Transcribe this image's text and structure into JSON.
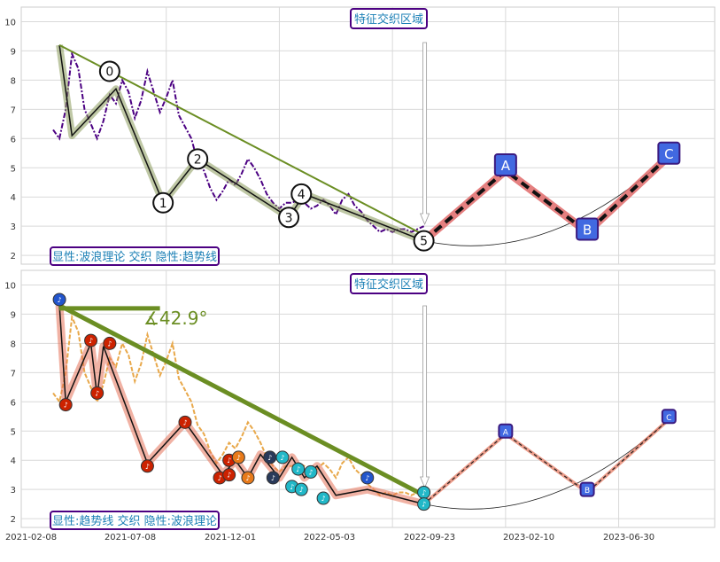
{
  "chart_data": [
    {
      "type": "line",
      "panel": "top",
      "ylim": [
        1.7,
        10.5
      ],
      "yticks": [
        2,
        3,
        4,
        5,
        6,
        7,
        8,
        9,
        10
      ],
      "grid": true,
      "annotation_top": "特征交织区域",
      "annotation_bottom_left": "显性:波浪理论 交织 隐性:趋势线",
      "price_series": {
        "color": "#4b0082",
        "values": [
          [
            0,
            6.3
          ],
          [
            2,
            6.0
          ],
          [
            4,
            7.0
          ],
          [
            6,
            8.9
          ],
          [
            8,
            8.4
          ],
          [
            10,
            7.0
          ],
          [
            12,
            6.5
          ],
          [
            14,
            6.0
          ],
          [
            16,
            6.6
          ],
          [
            18,
            7.5
          ],
          [
            20,
            7.2
          ],
          [
            22,
            8.0
          ],
          [
            24,
            7.6
          ],
          [
            26,
            6.7
          ],
          [
            28,
            7.3
          ],
          [
            30,
            8.3
          ],
          [
            32,
            7.6
          ],
          [
            34,
            6.9
          ],
          [
            36,
            7.4
          ],
          [
            38,
            8.0
          ],
          [
            40,
            6.8
          ],
          [
            42,
            6.4
          ],
          [
            44,
            6.0
          ],
          [
            46,
            5.2
          ],
          [
            48,
            4.9
          ],
          [
            50,
            4.3
          ],
          [
            52,
            3.9
          ],
          [
            54,
            4.2
          ],
          [
            56,
            4.6
          ],
          [
            58,
            4.4
          ],
          [
            60,
            4.8
          ],
          [
            62,
            5.3
          ],
          [
            64,
            5.0
          ],
          [
            66,
            4.6
          ],
          [
            68,
            4.1
          ],
          [
            70,
            3.8
          ],
          [
            72,
            3.6
          ],
          [
            74,
            3.8
          ],
          [
            76,
            3.8
          ],
          [
            78,
            3.9
          ],
          [
            80,
            3.8
          ],
          [
            82,
            3.6
          ],
          [
            84,
            3.7
          ],
          [
            86,
            3.9
          ],
          [
            88,
            3.7
          ],
          [
            90,
            3.4
          ],
          [
            92,
            3.9
          ],
          [
            94,
            4.1
          ],
          [
            96,
            3.7
          ],
          [
            98,
            3.5
          ],
          [
            100,
            3.2
          ],
          [
            102,
            3.0
          ],
          [
            104,
            2.8
          ],
          [
            106,
            2.9
          ],
          [
            108,
            2.8
          ],
          [
            110,
            2.9
          ],
          [
            112,
            2.9
          ],
          [
            114,
            2.8
          ],
          [
            116,
            2.9
          ],
          [
            118,
            3.0
          ]
        ]
      },
      "wave_points": [
        [
          2,
          9.2
        ],
        [
          6,
          6.1
        ],
        [
          20,
          7.7
        ],
        [
          35,
          3.8
        ],
        [
          46,
          5.3
        ],
        [
          75,
          3.3
        ],
        [
          80,
          4.1
        ],
        [
          118,
          2.5
        ],
        [
          144,
          4.9
        ],
        [
          170,
          2.8
        ],
        [
          196,
          5.4
        ]
      ],
      "wave_labels": [
        {
          "text": "0",
          "x": 18,
          "y": 8.3
        },
        {
          "text": "1",
          "x": 35,
          "y": 3.8
        },
        {
          "text": "2",
          "x": 46,
          "y": 5.3
        },
        {
          "text": "3",
          "x": 75,
          "y": 3.3
        },
        {
          "text": "4",
          "x": 79,
          "y": 4.1
        },
        {
          "text": "5",
          "x": 118,
          "y": 2.5
        }
      ],
      "projection_labels": [
        {
          "text": "A",
          "x": 144,
          "y": 5.1
        },
        {
          "text": "B",
          "x": 170,
          "y": 2.9
        },
        {
          "text": "C",
          "x": 196,
          "y": 5.5
        }
      ],
      "trendline": [
        [
          2,
          9.2
        ],
        [
          118,
          2.7
        ]
      ]
    },
    {
      "type": "line",
      "panel": "bottom",
      "ylim": [
        1.7,
        10.5
      ],
      "yticks": [
        2,
        3,
        4,
        5,
        6,
        7,
        8,
        9,
        10
      ],
      "grid": true,
      "annotation_top": "特征交织区域",
      "annotation_bottom_left": "显性:趋势线 交织 隐性:波浪理论",
      "angle_label": "∡42.9°",
      "xtick_labels": [
        "2021-02-08",
        "2021-07-08",
        "2021-12-01",
        "2022-05-03",
        "2022-09-23",
        "2023-02-10",
        "2023-06-30"
      ],
      "price_series": {
        "color": "#e8a84a",
        "values": [
          [
            0,
            6.3
          ],
          [
            2,
            6.0
          ],
          [
            4,
            7.0
          ],
          [
            6,
            8.9
          ],
          [
            8,
            8.4
          ],
          [
            10,
            7.0
          ],
          [
            12,
            6.5
          ],
          [
            14,
            6.0
          ],
          [
            16,
            6.6
          ],
          [
            18,
            7.5
          ],
          [
            20,
            7.2
          ],
          [
            22,
            8.0
          ],
          [
            24,
            7.6
          ],
          [
            26,
            6.7
          ],
          [
            28,
            7.3
          ],
          [
            30,
            8.3
          ],
          [
            32,
            7.6
          ],
          [
            34,
            6.9
          ],
          [
            36,
            7.4
          ],
          [
            38,
            8.0
          ],
          [
            40,
            6.8
          ],
          [
            42,
            6.4
          ],
          [
            44,
            6.0
          ],
          [
            46,
            5.2
          ],
          [
            48,
            4.9
          ],
          [
            50,
            4.3
          ],
          [
            52,
            3.9
          ],
          [
            54,
            4.2
          ],
          [
            56,
            4.6
          ],
          [
            58,
            4.4
          ],
          [
            60,
            4.8
          ],
          [
            62,
            5.3
          ],
          [
            64,
            5.0
          ],
          [
            66,
            4.6
          ],
          [
            68,
            4.1
          ],
          [
            70,
            3.8
          ],
          [
            72,
            3.6
          ],
          [
            74,
            3.8
          ],
          [
            76,
            3.8
          ],
          [
            78,
            3.9
          ],
          [
            80,
            3.8
          ],
          [
            82,
            3.6
          ],
          [
            84,
            3.7
          ],
          [
            86,
            3.9
          ],
          [
            88,
            3.7
          ],
          [
            90,
            3.4
          ],
          [
            92,
            3.9
          ],
          [
            94,
            4.1
          ],
          [
            96,
            3.7
          ],
          [
            98,
            3.5
          ],
          [
            100,
            3.2
          ],
          [
            102,
            3.0
          ],
          [
            104,
            2.8
          ],
          [
            106,
            2.9
          ],
          [
            108,
            2.8
          ],
          [
            110,
            2.9
          ],
          [
            112,
            2.9
          ],
          [
            114,
            2.8
          ],
          [
            116,
            2.9
          ],
          [
            118,
            3.0
          ]
        ]
      },
      "wave_points": [
        [
          2,
          9.3
        ],
        [
          4,
          6.0
        ],
        [
          12,
          8.0
        ],
        [
          14,
          6.2
        ],
        [
          16,
          7.9
        ],
        [
          30,
          3.9
        ],
        [
          42,
          5.3
        ],
        [
          54,
          3.5
        ],
        [
          58,
          4.0
        ],
        [
          62,
          3.4
        ],
        [
          66,
          4.2
        ],
        [
          72,
          3.4
        ],
        [
          76,
          4.1
        ],
        [
          80,
          3.4
        ],
        [
          84,
          3.8
        ],
        [
          90,
          2.8
        ],
        [
          100,
          3.0
        ],
        [
          118,
          2.5
        ],
        [
          144,
          4.9
        ],
        [
          170,
          2.9
        ],
        [
          196,
          5.4
        ]
      ],
      "markers": [
        {
          "x": 2,
          "y": 9.5,
          "color": "#2255cc"
        },
        {
          "x": 4,
          "y": 5.9,
          "color": "#cc2200"
        },
        {
          "x": 12,
          "y": 8.1,
          "color": "#cc2200"
        },
        {
          "x": 14,
          "y": 6.3,
          "color": "#cc2200"
        },
        {
          "x": 18,
          "y": 8.0,
          "color": "#cc2200"
        },
        {
          "x": 30,
          "y": 3.8,
          "color": "#cc2200"
        },
        {
          "x": 42,
          "y": 5.3,
          "color": "#cc2200"
        },
        {
          "x": 53,
          "y": 3.4,
          "color": "#cc2200"
        },
        {
          "x": 56,
          "y": 4.0,
          "color": "#cc2200"
        },
        {
          "x": 56,
          "y": 3.5,
          "color": "#cc2200"
        },
        {
          "x": 59,
          "y": 4.1,
          "color": "#e87a1a"
        },
        {
          "x": 62,
          "y": 3.4,
          "color": "#e87a1a"
        },
        {
          "x": 69,
          "y": 4.1,
          "color": "#2a3a5a"
        },
        {
          "x": 70,
          "y": 3.4,
          "color": "#2a3a5a"
        },
        {
          "x": 73,
          "y": 4.1,
          "color": "#22b8c8"
        },
        {
          "x": 76,
          "y": 3.1,
          "color": "#22b8c8"
        },
        {
          "x": 78,
          "y": 3.7,
          "color": "#22b8c8"
        },
        {
          "x": 79,
          "y": 3.0,
          "color": "#22b8c8"
        },
        {
          "x": 82,
          "y": 3.6,
          "color": "#22b8c8"
        },
        {
          "x": 86,
          "y": 2.7,
          "color": "#22b8c8"
        },
        {
          "x": 100,
          "y": 3.4,
          "color": "#2255cc"
        },
        {
          "x": 118,
          "y": 2.9,
          "color": "#22b8c8"
        },
        {
          "x": 118,
          "y": 2.5,
          "color": "#22b8c8"
        }
      ],
      "projection_labels": [
        {
          "text": "A",
          "x": 144,
          "y": 5.0
        },
        {
          "text": "B",
          "x": 170,
          "y": 3.0
        },
        {
          "text": "C",
          "x": 196,
          "y": 5.5
        }
      ],
      "trendline": [
        [
          2,
          9.3
        ],
        [
          118,
          2.8
        ]
      ],
      "horizontal_ref": [
        [
          2,
          9.2
        ],
        [
          34,
          9.2
        ]
      ]
    }
  ]
}
